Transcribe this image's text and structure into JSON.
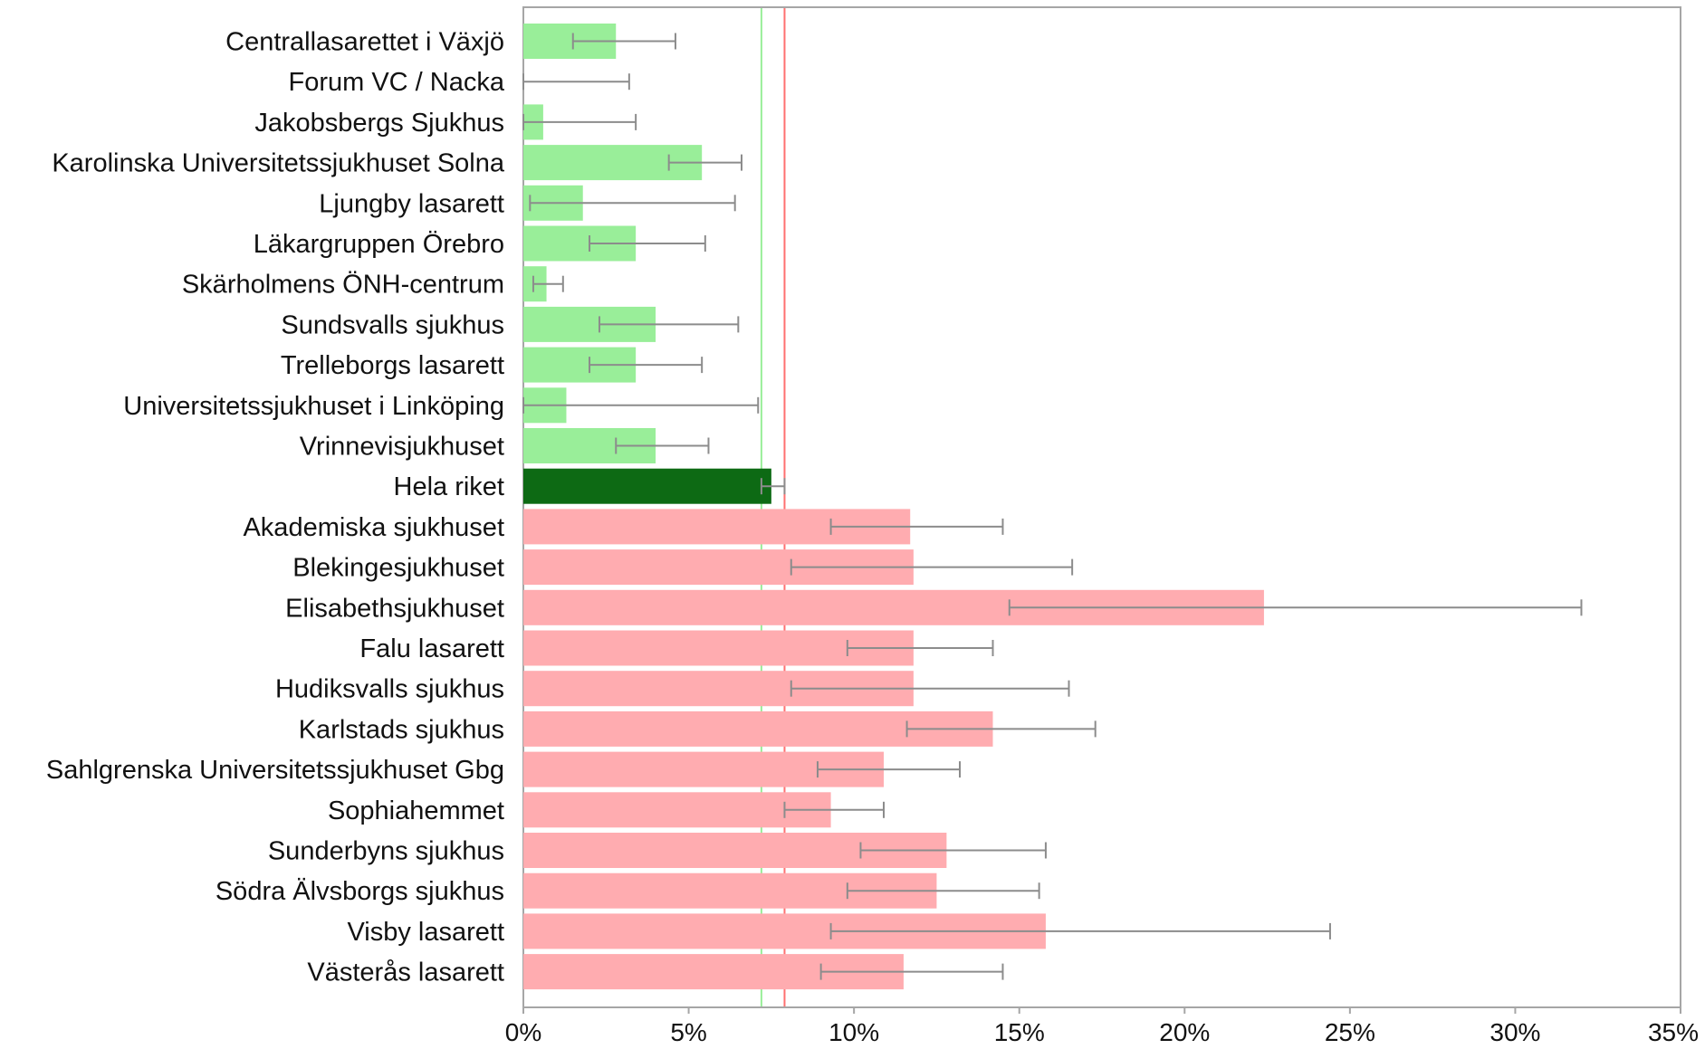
{
  "chart_data": {
    "type": "bar",
    "orientation": "horizontal",
    "categories": [
      "Centrallasarettet i Växjö",
      "Forum VC / Nacka",
      "Jakobsbergs Sjukhus",
      "Karolinska Universitetssjukhuset Solna",
      "Ljungby lasarett",
      "Läkargruppen Örebro",
      "Skärholmens ÖNH-centrum",
      "Sundsvalls sjukhus",
      "Trelleborgs lasarett",
      "Universitetssjukhuset i Linköping",
      "Vrinnevisjukhuset",
      "Hela riket",
      "Akademiska sjukhuset",
      "Blekingesjukhuset",
      "Elisabethsjukhuset",
      "Falu lasarett",
      "Hudiksvalls sjukhus",
      "Karlstads sjukhus",
      "Sahlgrenska Universitetssjukhuset Gbg",
      "Sophiahemmet",
      "Sunderbyns sjukhus",
      "Södra Älvsborgs sjukhus",
      "Visby lasarett",
      "Västerås lasarett"
    ],
    "values": [
      2.8,
      0.0,
      0.6,
      5.4,
      1.8,
      3.4,
      0.7,
      4.0,
      3.4,
      1.3,
      4.0,
      7.5,
      11.7,
      11.8,
      22.4,
      11.8,
      11.8,
      14.2,
      10.9,
      9.3,
      12.8,
      12.5,
      15.8,
      11.5
    ],
    "error_low": [
      1.5,
      0.0,
      0.0,
      4.4,
      0.2,
      2.0,
      0.3,
      2.3,
      2.0,
      0.0,
      2.8,
      7.2,
      9.3,
      8.1,
      14.7,
      9.8,
      8.1,
      11.6,
      8.9,
      7.9,
      10.2,
      9.8,
      9.3,
      9.0
    ],
    "error_high": [
      4.6,
      3.2,
      3.4,
      6.6,
      6.4,
      5.5,
      1.2,
      6.5,
      5.4,
      7.1,
      5.6,
      7.9,
      14.5,
      16.6,
      32.0,
      14.2,
      16.5,
      17.3,
      13.2,
      10.9,
      15.8,
      15.6,
      24.4,
      14.5
    ],
    "bar_groups": [
      "below",
      "below",
      "below",
      "below",
      "below",
      "below",
      "below",
      "below",
      "below",
      "below",
      "below",
      "national",
      "above",
      "above",
      "above",
      "above",
      "above",
      "above",
      "above",
      "above",
      "above",
      "above",
      "above",
      "above"
    ],
    "colors": {
      "below": "#99ee99",
      "national": "#0d6a14",
      "above": "#ffacb0",
      "error_bar": "#8c8c8c"
    },
    "reference_lines": [
      {
        "value": 7.2,
        "color": "#99ee99"
      },
      {
        "value": 7.9,
        "color": "#ff7070"
      }
    ],
    "xlim": [
      0,
      35
    ],
    "xticks": [
      0,
      5,
      10,
      15,
      20,
      25,
      30,
      35
    ],
    "xtick_labels": [
      "0%",
      "5%",
      "10%",
      "15%",
      "20%",
      "25%",
      "30%",
      "35%"
    ],
    "title": "",
    "xlabel": "",
    "ylabel": "",
    "grid": false,
    "legend": "none"
  }
}
